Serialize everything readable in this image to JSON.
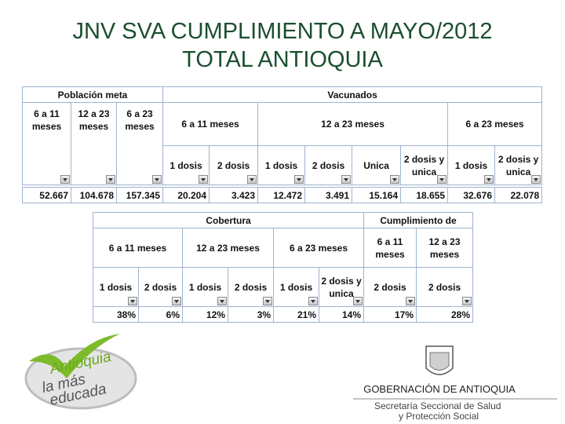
{
  "title": {
    "line1": "JNV SVA CUMPLIMIENTO A MAYO/2012",
    "line2": "TOTAL ANTIOQUIA"
  },
  "table1": {
    "groups": [
      "Población meta",
      "Vacunados"
    ],
    "subgroups": [
      "6 a 11 meses",
      "12 a 23 meses",
      "6 a 23 meses"
    ],
    "columns": [
      "6 a 11 meses",
      "12 a 23 meses",
      "6 a 23 meses",
      "1 dosis",
      "2 dosis",
      "1 dosis",
      "2 dosis",
      "Unica",
      "2 dosis y unica",
      "1 dosis",
      "2 dosis y unica"
    ],
    "row": [
      "52.667",
      "104.678",
      "157.345",
      "20.204",
      "3.423",
      "12.472",
      "3.491",
      "15.164",
      "18.655",
      "32.676",
      "22.078"
    ]
  },
  "table2": {
    "groups": [
      "Cobertura",
      "Cumplimiento de"
    ],
    "subgroups": [
      "6 a 11 meses",
      "12 a 23 meses",
      "6 a 23 meses",
      "6 a 11 meses",
      "12 a 23 meses"
    ],
    "columns": [
      "1 dosis",
      "2 dosis",
      "1 dosis",
      "2 dosis",
      "1 dosis",
      "2 dosis y unica",
      "2 dosis",
      "2 dosis"
    ],
    "row": [
      "38%",
      "6%",
      "12%",
      "3%",
      "21%",
      "14%",
      "17%",
      "28%"
    ]
  },
  "logo": {
    "line1": "Antioquia",
    "line2": "la más",
    "line3": "educada"
  },
  "footer": {
    "org": "GOBERNACIÓN DE ANTIOQUIA",
    "dept_line1": "Secretaría Seccional de Salud",
    "dept_line2": "y Protección Social"
  }
}
